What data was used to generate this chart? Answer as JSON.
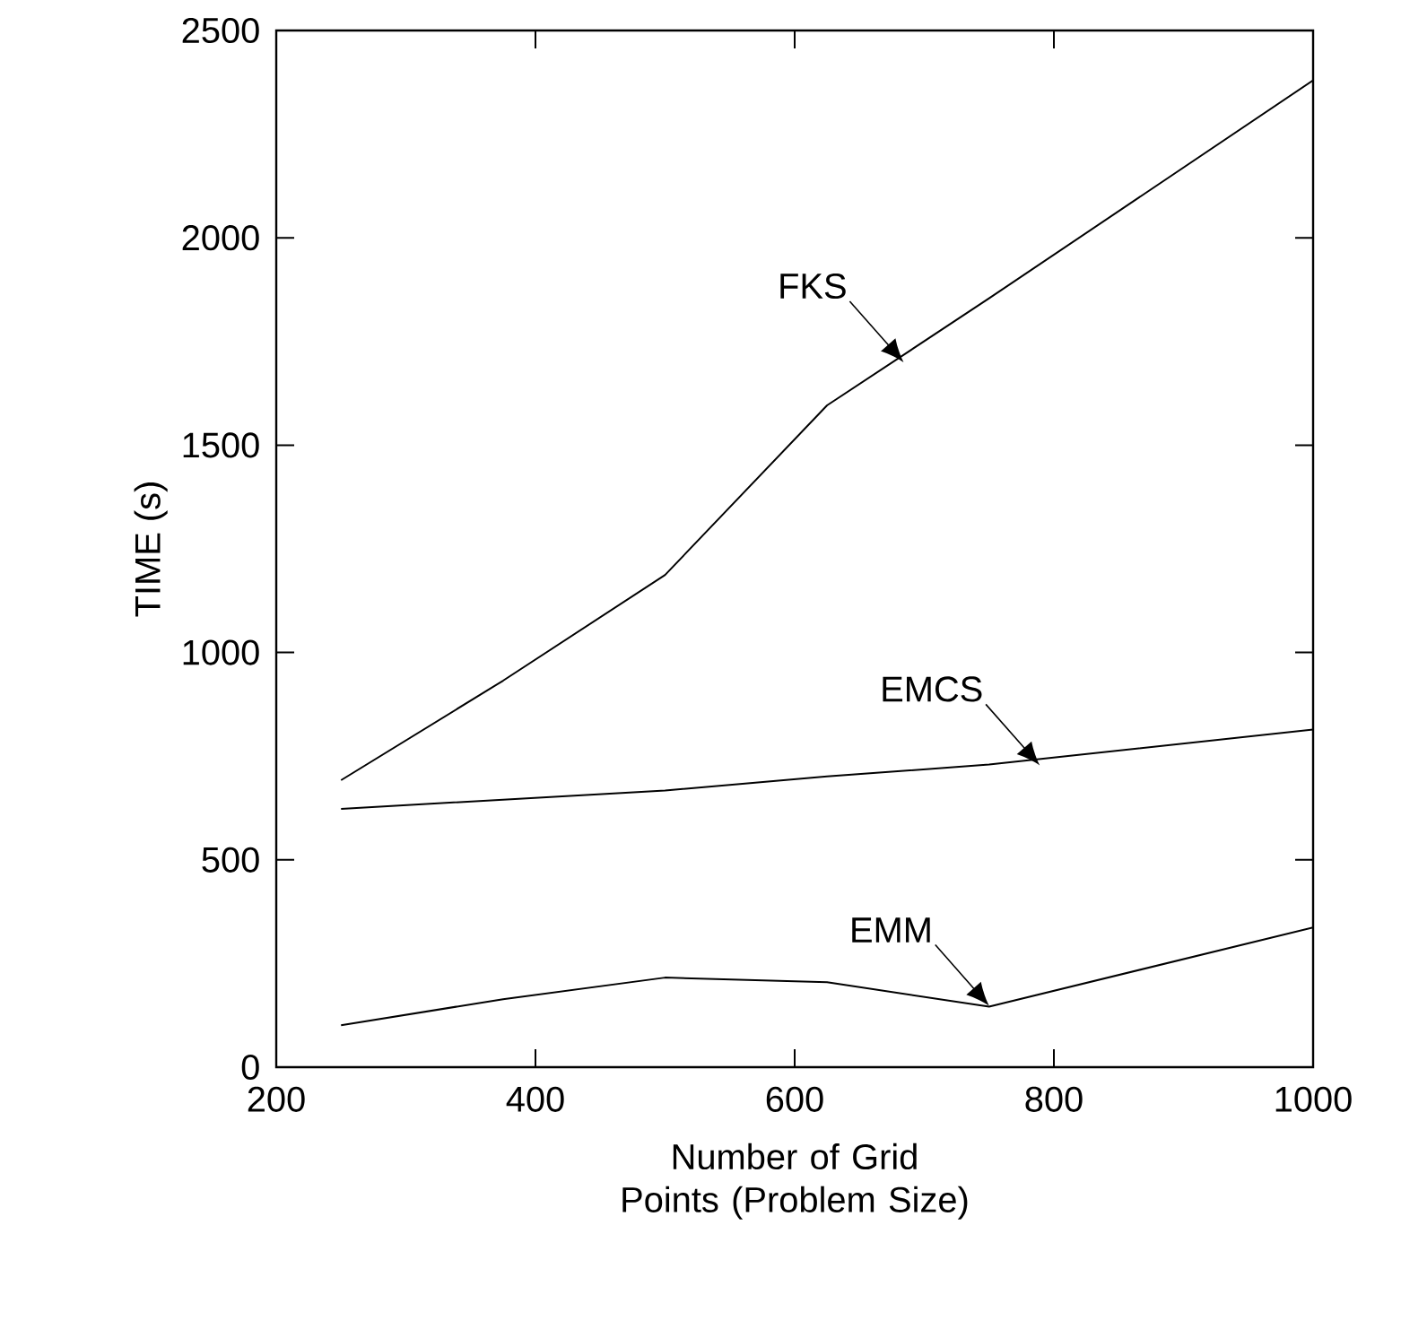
{
  "chart_data": {
    "type": "line",
    "xlabel": "Number of Grid Points (Problem Size)",
    "ylabel": "TIME (s)",
    "xlim": [
      200,
      1000
    ],
    "xticks": [
      200,
      400,
      600,
      800,
      1000
    ],
    "ylim": [
      0,
      2500
    ],
    "yticks": [
      0,
      500,
      1000,
      1500,
      2000,
      2500
    ],
    "line_style": "solid",
    "marker": "none",
    "series": [
      {
        "color": "#000000",
        "x": [
          250,
          375,
          500,
          625,
          750,
          1000
        ],
        "values": [
          692,
          932,
          1187,
          1596,
          1854,
          2380
        ]
      },
      {
        "color": "#000000",
        "x": [
          250,
          500,
          625,
          750,
          1000
        ],
        "values": [
          623,
          667,
          701,
          730,
          814
        ]
      },
      {
        "color": "#000000",
        "x": [
          250,
          375,
          500,
          625,
          750,
          1000
        ],
        "values": [
          101,
          164,
          216,
          205,
          146,
          337
        ]
      }
    ],
    "annotations": [
      {
        "text": "FKS",
        "x": 684,
        "y": 1700
      },
      {
        "text": "EMCS",
        "x": 789,
        "y": 728
      },
      {
        "text": "EMM",
        "x": 750,
        "y": 148
      }
    ]
  }
}
